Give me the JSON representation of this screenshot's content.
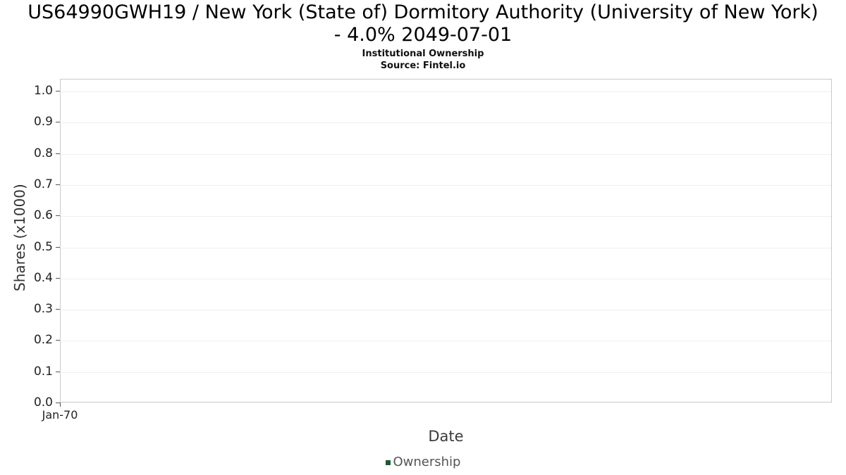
{
  "header": {
    "title_line1": "US64990GWH19 / New York (State of) Dormitory Authority (University of New York)",
    "title_line2": "- 4.0% 2049-07-01",
    "subtitle": "Institutional Ownership",
    "source": "Source: Fintel.io"
  },
  "chart_data": {
    "type": "line",
    "title": "US64990GWH19 / New York (State of) Dormitory Authority (University of New York) - 4.0% 2049-07-01",
    "subtitle": "Institutional Ownership",
    "source": "Source: Fintel.io",
    "xlabel": "Date",
    "ylabel": "Shares (x1000)",
    "x_ticks": [
      "Jan-70"
    ],
    "y_ticks": [
      0.0,
      0.1,
      0.2,
      0.3,
      0.4,
      0.5,
      0.6,
      0.7,
      0.8,
      0.9,
      1.0
    ],
    "ylim": [
      0.0,
      1.0
    ],
    "grid": true,
    "legend_position": "bottom",
    "series": [
      {
        "name": "Ownership",
        "color": "#1a5c32",
        "x": [],
        "values": []
      }
    ]
  }
}
